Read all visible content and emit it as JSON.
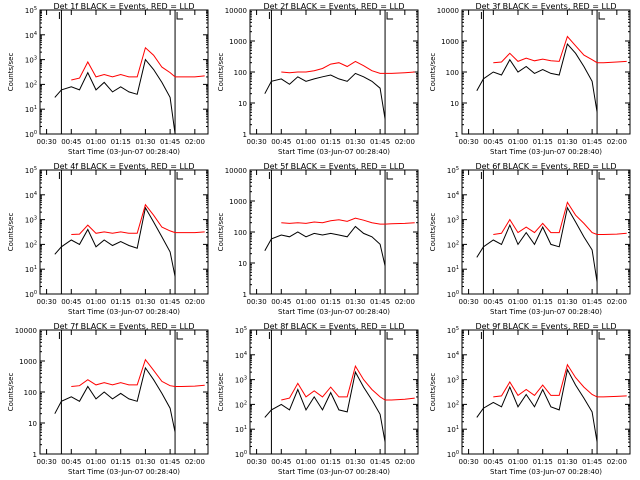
{
  "figure": {
    "shared_xlabel": "Start Time (03-Jun-07 00:28:40)",
    "shared_ylabel": "Counts/sec",
    "x_ticks": [
      "00:30",
      "00:45",
      "01:00",
      "01:15",
      "01:30",
      "01:45",
      "02:00"
    ],
    "colors": {
      "events": "#000000",
      "lld": "#ff0000",
      "axis": "#000000"
    }
  },
  "chart_data": [
    {
      "type": "line",
      "title": "Det 1f BLACK = Events, RED = LLD",
      "scale": "log",
      "ylim": [
        1,
        100000
      ],
      "y_ticks": [
        "10^0",
        "10^1",
        "10^2",
        "10^3",
        "10^4",
        "10^5"
      ],
      "xlabel": "Start Time (03-Jun-07 00:28:40)",
      "ylabel": "Counts/sec",
      "x_ticks": [
        "00:30",
        "00:45",
        "01:00",
        "01:15",
        "01:30",
        "01:45",
        "02:00"
      ],
      "x": [
        "00:35",
        "00:39",
        "00:45",
        "00:50",
        "00:55",
        "01:00",
        "01:05",
        "01:10",
        "01:15",
        "01:20",
        "01:25",
        "01:30",
        "01:35",
        "01:40",
        "01:45",
        "01:48",
        "01:52",
        "02:00",
        "02:06"
      ],
      "series": [
        {
          "name": "BLACK = Events",
          "values": [
            30,
            60,
            80,
            60,
            300,
            60,
            120,
            50,
            80,
            50,
            40,
            1000,
            400,
            120,
            30,
            1,
            null,
            null,
            null
          ]
        },
        {
          "name": "RED = LLD",
          "values": [
            null,
            null,
            150,
            180,
            800,
            200,
            250,
            200,
            250,
            200,
            200,
            3000,
            1500,
            500,
            300,
            200,
            200,
            200,
            220
          ]
        }
      ]
    },
    {
      "type": "line",
      "title": "Det 2f BLACK = Events, RED = LLD",
      "scale": "log",
      "ylim": [
        1,
        10000
      ],
      "y_ticks": [
        "1",
        "10",
        "100",
        "1000",
        "10000"
      ],
      "xlabel": "Start Time (03-Jun-07 00:28:40)",
      "ylabel": "Counts/sec",
      "x_ticks": [
        "00:30",
        "00:45",
        "01:00",
        "01:15",
        "01:30",
        "01:45",
        "02:00"
      ],
      "x": [
        "00:35",
        "00:39",
        "00:45",
        "00:50",
        "00:55",
        "01:00",
        "01:05",
        "01:10",
        "01:15",
        "01:20",
        "01:25",
        "01:30",
        "01:35",
        "01:40",
        "01:45",
        "01:48",
        "01:52",
        "02:00",
        "02:06"
      ],
      "series": [
        {
          "name": "BLACK = Events",
          "values": [
            20,
            50,
            60,
            40,
            70,
            50,
            60,
            70,
            80,
            60,
            50,
            90,
            70,
            50,
            30,
            3,
            null,
            null,
            null
          ]
        },
        {
          "name": "RED = LLD",
          "values": [
            null,
            null,
            100,
            95,
            100,
            100,
            110,
            130,
            180,
            200,
            150,
            220,
            160,
            110,
            90,
            90,
            90,
            95,
            100
          ]
        }
      ]
    },
    {
      "type": "line",
      "title": "Det 3f BLACK = Events, RED = LLD",
      "scale": "log",
      "ylim": [
        1,
        10000
      ],
      "y_ticks": [
        "1",
        "10",
        "100",
        "1000",
        "10000"
      ],
      "xlabel": "Start Time (03-Jun-07 00:28:40)",
      "ylabel": "Counts/sec",
      "x_ticks": [
        "00:30",
        "00:45",
        "01:00",
        "01:15",
        "01:30",
        "01:45",
        "02:00"
      ],
      "x": [
        "00:35",
        "00:39",
        "00:45",
        "00:50",
        "00:55",
        "01:00",
        "01:05",
        "01:10",
        "01:15",
        "01:20",
        "01:25",
        "01:30",
        "01:35",
        "01:40",
        "01:45",
        "01:48",
        "01:52",
        "02:00",
        "02:06"
      ],
      "series": [
        {
          "name": "BLACK = Events",
          "values": [
            25,
            60,
            100,
            80,
            250,
            100,
            150,
            90,
            120,
            90,
            80,
            800,
            400,
            150,
            50,
            5,
            null,
            null,
            null
          ]
        },
        {
          "name": "RED = LLD",
          "values": [
            null,
            null,
            200,
            210,
            400,
            220,
            280,
            230,
            260,
            230,
            220,
            1400,
            700,
            350,
            250,
            200,
            200,
            210,
            220
          ]
        }
      ]
    },
    {
      "type": "line",
      "title": "Det 4f BLACK = Events, RED = LLD",
      "scale": "log",
      "ylim": [
        1,
        100000
      ],
      "y_ticks": [
        "10^0",
        "10^1",
        "10^2",
        "10^3",
        "10^4",
        "10^5"
      ],
      "xlabel": "Start Time (03-Jun-07 00:28:40)",
      "ylabel": "Counts/sec",
      "x_ticks": [
        "00:30",
        "00:45",
        "01:00",
        "01:15",
        "01:30",
        "01:45",
        "02:00"
      ],
      "x": [
        "00:35",
        "00:39",
        "00:45",
        "00:50",
        "00:55",
        "01:00",
        "01:05",
        "01:10",
        "01:15",
        "01:20",
        "01:25",
        "01:30",
        "01:35",
        "01:40",
        "01:45",
        "01:48",
        "01:52",
        "02:00",
        "02:06"
      ],
      "series": [
        {
          "name": "BLACK = Events",
          "values": [
            40,
            80,
            150,
            100,
            400,
            80,
            150,
            90,
            130,
            90,
            70,
            3000,
            800,
            200,
            50,
            5,
            null,
            null,
            null
          ]
        },
        {
          "name": "RED = LLD",
          "values": [
            null,
            null,
            250,
            260,
            600,
            280,
            320,
            280,
            320,
            280,
            280,
            4000,
            1500,
            500,
            350,
            300,
            300,
            300,
            320
          ]
        }
      ]
    },
    {
      "type": "line",
      "title": "Det 5f BLACK = Events, RED = LLD",
      "scale": "log",
      "ylim": [
        1,
        10000
      ],
      "y_ticks": [
        "1",
        "10",
        "100",
        "1000",
        "10000"
      ],
      "xlabel": "Start Time (03-Jun-07 00:28:40)",
      "ylabel": "Counts/sec",
      "x_ticks": [
        "00:30",
        "00:45",
        "01:00",
        "01:15",
        "01:30",
        "01:45",
        "02:00"
      ],
      "x": [
        "00:35",
        "00:39",
        "00:45",
        "00:50",
        "00:55",
        "01:00",
        "01:05",
        "01:10",
        "01:15",
        "01:20",
        "01:25",
        "01:30",
        "01:35",
        "01:40",
        "01:45",
        "01:48",
        "01:52",
        "02:00",
        "02:06"
      ],
      "series": [
        {
          "name": "BLACK = Events",
          "values": [
            25,
            60,
            80,
            70,
            100,
            70,
            90,
            80,
            90,
            80,
            70,
            150,
            90,
            70,
            40,
            8,
            null,
            null,
            null
          ]
        },
        {
          "name": "RED = LLD",
          "values": [
            null,
            null,
            200,
            190,
            200,
            190,
            210,
            200,
            230,
            250,
            220,
            280,
            240,
            200,
            180,
            180,
            185,
            190,
            200
          ]
        }
      ]
    },
    {
      "type": "line",
      "title": "Det 6f BLACK = Events, RED = LLD",
      "scale": "log",
      "ylim": [
        1,
        100000
      ],
      "y_ticks": [
        "10^0",
        "10^1",
        "10^2",
        "10^3",
        "10^4",
        "10^5"
      ],
      "xlabel": "Start Time (03-Jun-07 00:28:40)",
      "ylabel": "Counts/sec",
      "x_ticks": [
        "00:30",
        "00:45",
        "01:00",
        "01:15",
        "01:30",
        "01:45",
        "02:00"
      ],
      "x": [
        "00:35",
        "00:39",
        "00:45",
        "00:50",
        "00:55",
        "01:00",
        "01:05",
        "01:10",
        "01:15",
        "01:20",
        "01:25",
        "01:30",
        "01:35",
        "01:40",
        "01:45",
        "01:48",
        "01:52",
        "02:00",
        "02:06"
      ],
      "series": [
        {
          "name": "BLACK = Events",
          "values": [
            30,
            80,
            150,
            100,
            600,
            100,
            300,
            100,
            500,
            100,
            80,
            3000,
            800,
            200,
            60,
            3,
            null,
            null,
            null
          ]
        },
        {
          "name": "RED = LLD",
          "values": [
            null,
            null,
            250,
            280,
            1000,
            300,
            500,
            300,
            700,
            300,
            300,
            5000,
            1500,
            700,
            300,
            250,
            250,
            260,
            280
          ]
        }
      ]
    },
    {
      "type": "line",
      "title": "Det 7f BLACK = Events, RED = LLD",
      "scale": "log",
      "ylim": [
        1,
        10000
      ],
      "y_ticks": [
        "1",
        "10",
        "100",
        "1000",
        "10000"
      ],
      "xlabel": "Start Time (03-Jun-07 00:28:40)",
      "ylabel": "Counts/sec",
      "x_ticks": [
        "00:30",
        "00:45",
        "01:00",
        "01:15",
        "01:30",
        "01:45",
        "02:00"
      ],
      "x": [
        "00:35",
        "00:39",
        "00:45",
        "00:50",
        "00:55",
        "01:00",
        "01:05",
        "01:10",
        "01:15",
        "01:20",
        "01:25",
        "01:30",
        "01:35",
        "01:40",
        "01:45",
        "01:48",
        "01:52",
        "02:00",
        "02:06"
      ],
      "series": [
        {
          "name": "BLACK = Events",
          "values": [
            20,
            50,
            70,
            50,
            150,
            60,
            100,
            60,
            90,
            60,
            50,
            600,
            250,
            90,
            30,
            5,
            null,
            null,
            null
          ]
        },
        {
          "name": "RED = LLD",
          "values": [
            null,
            null,
            150,
            160,
            250,
            170,
            200,
            170,
            200,
            170,
            170,
            1100,
            500,
            220,
            160,
            150,
            150,
            155,
            165
          ]
        }
      ]
    },
    {
      "type": "line",
      "title": "Det 8f BLACK = Events, RED = LLD",
      "scale": "log",
      "ylim": [
        1,
        100000
      ],
      "y_ticks": [
        "10^0",
        "10^1",
        "10^2",
        "10^3",
        "10^4",
        "10^5"
      ],
      "xlabel": "Start Time (03-Jun-07 00:28:40)",
      "ylabel": "Counts/sec",
      "x_ticks": [
        "00:30",
        "00:45",
        "01:00",
        "01:15",
        "01:30",
        "01:45",
        "02:00"
      ],
      "x": [
        "00:35",
        "00:39",
        "00:45",
        "00:50",
        "00:55",
        "01:00",
        "01:05",
        "01:10",
        "01:15",
        "01:20",
        "01:25",
        "01:30",
        "01:35",
        "01:40",
        "01:45",
        "01:48",
        "01:52",
        "02:00",
        "02:06"
      ],
      "series": [
        {
          "name": "BLACK = Events",
          "values": [
            30,
            60,
            100,
            60,
            400,
            60,
            200,
            60,
            300,
            60,
            50,
            2000,
            500,
            150,
            40,
            3,
            null,
            null,
            null
          ]
        },
        {
          "name": "RED = LLD",
          "values": [
            null,
            null,
            150,
            180,
            700,
            200,
            350,
            200,
            500,
            200,
            200,
            3500,
            1000,
            400,
            200,
            150,
            150,
            160,
            180
          ]
        }
      ]
    },
    {
      "type": "line",
      "title": "Det 9f BLACK = Events, RED = LLD",
      "scale": "log",
      "ylim": [
        1,
        100000
      ],
      "y_ticks": [
        "10^0",
        "10^1",
        "10^2",
        "10^3",
        "10^4",
        "10^5"
      ],
      "xlabel": "Start Time (03-Jun-07 00:28:40)",
      "ylabel": "Counts/sec",
      "x_ticks": [
        "00:30",
        "00:45",
        "01:00",
        "01:15",
        "01:30",
        "01:45",
        "02:00"
      ],
      "x": [
        "00:35",
        "00:39",
        "00:45",
        "00:50",
        "00:55",
        "01:00",
        "01:05",
        "01:10",
        "01:15",
        "01:20",
        "01:25",
        "01:30",
        "01:35",
        "01:40",
        "01:45",
        "01:48",
        "01:52",
        "02:00",
        "02:06"
      ],
      "series": [
        {
          "name": "BLACK = Events",
          "values": [
            30,
            70,
            120,
            80,
            500,
            80,
            250,
            80,
            400,
            80,
            60,
            2500,
            600,
            180,
            50,
            3,
            null,
            null,
            null
          ]
        },
        {
          "name": "RED = LLD",
          "values": [
            null,
            null,
            200,
            220,
            800,
            230,
            400,
            230,
            600,
            230,
            230,
            4000,
            1200,
            500,
            250,
            200,
            200,
            210,
            220
          ]
        }
      ]
    }
  ]
}
